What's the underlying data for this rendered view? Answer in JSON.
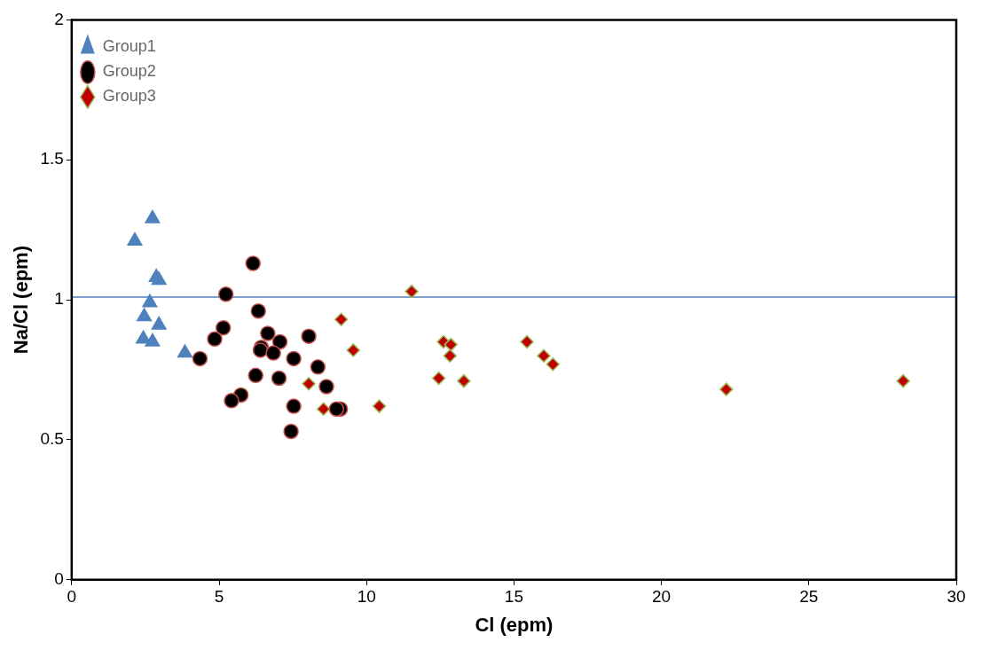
{
  "chart_data": {
    "type": "scatter",
    "xlabel": "Cl (epm)",
    "ylabel": "Na/Cl (epm)",
    "xlim": [
      0,
      30
    ],
    "xticks": [
      0,
      5,
      10,
      15,
      20,
      25,
      30
    ],
    "ylim": [
      0,
      2
    ],
    "yticks": [
      0,
      0.5,
      1,
      1.5,
      2
    ],
    "grid": false,
    "legend": "top left",
    "ref_lines": [
      {
        "axis": "y",
        "value": 1.01,
        "color": "#4f81bd"
      }
    ],
    "series": [
      {
        "name": "Group1",
        "color": "#4f81bd",
        "marker": "triangle",
        "x": [
          2.14,
          2.74,
          2.87,
          2.96,
          2.65,
          2.46,
          2.96,
          2.43,
          2.74,
          3.84
        ],
        "values": [
          1.21,
          1.29,
          1.08,
          1.07,
          0.99,
          0.94,
          0.91,
          0.86,
          0.85,
          0.81
        ]
      },
      {
        "name": "Group2",
        "color": "#000000",
        "marker": "circle",
        "x": [
          6.15,
          5.23,
          6.33,
          5.14,
          4.85,
          6.65,
          7.06,
          6.43,
          6.4,
          6.84,
          8.04,
          7.53,
          4.35,
          8.35,
          6.24,
          7.03,
          8.64,
          5.74,
          5.42,
          7.53,
          9.11,
          8.98,
          7.44
        ],
        "values": [
          1.13,
          1.02,
          0.96,
          0.9,
          0.86,
          0.88,
          0.85,
          0.83,
          0.82,
          0.81,
          0.87,
          0.79,
          0.79,
          0.76,
          0.73,
          0.72,
          0.69,
          0.66,
          0.64,
          0.62,
          0.61,
          0.61,
          0.53
        ]
      },
      {
        "name": "Group3",
        "color": "#c00000",
        "marker": "diamond",
        "x": [
          11.53,
          9.14,
          9.55,
          8.04,
          8.54,
          10.43,
          12.61,
          12.86,
          12.83,
          12.45,
          13.3,
          15.44,
          16.01,
          16.32,
          22.2,
          28.2
        ],
        "values": [
          1.03,
          0.93,
          0.82,
          0.7,
          0.61,
          0.62,
          0.85,
          0.84,
          0.8,
          0.72,
          0.71,
          0.85,
          0.8,
          0.77,
          0.68,
          0.71
        ]
      }
    ]
  }
}
